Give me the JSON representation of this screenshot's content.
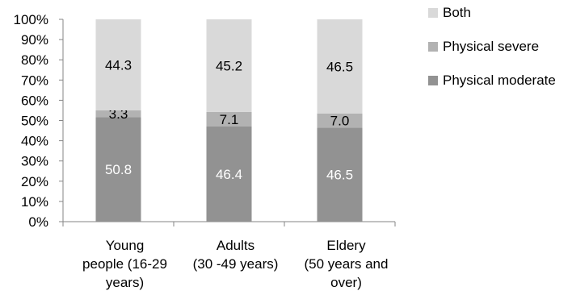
{
  "chart_data": {
    "type": "bar",
    "stacked": true,
    "percent_stacked": true,
    "categories": [
      [
        "Young",
        "people (16-29",
        "years)"
      ],
      [
        "Adults",
        "(30 -49 years)"
      ],
      [
        "Eldery",
        "(50 years and",
        "over)"
      ]
    ],
    "series": [
      {
        "name": "Physical moderate",
        "values": [
          50.8,
          46.4,
          46.5
        ],
        "color": "#929292",
        "label_color": "#ffffff"
      },
      {
        "name": "Physical severe",
        "values": [
          3.3,
          7.1,
          7.0
        ],
        "color": "#b2b2b2",
        "label_color": "#000000"
      },
      {
        "name": "Both",
        "values": [
          44.3,
          45.2,
          46.5
        ],
        "color": "#d9d9d9",
        "label_color": "#000000"
      }
    ],
    "data_labels": [
      [
        "50.8",
        "46.4",
        "46.5"
      ],
      [
        "3.3",
        "7.1",
        "7.0"
      ],
      [
        "44.3",
        "45.2",
        "46.5"
      ]
    ],
    "y_ticks": [
      "0%",
      "10%",
      "20%",
      "30%",
      "40%",
      "50%",
      "60%",
      "70%",
      "80%",
      "90%",
      "100%"
    ],
    "ylim": [
      0,
      100
    ],
    "title": "",
    "xlabel": "",
    "ylabel": "",
    "grid": false,
    "legend_position": "top-right",
    "legend_order": [
      "Both",
      "Physical severe",
      "Physical moderate"
    ]
  }
}
